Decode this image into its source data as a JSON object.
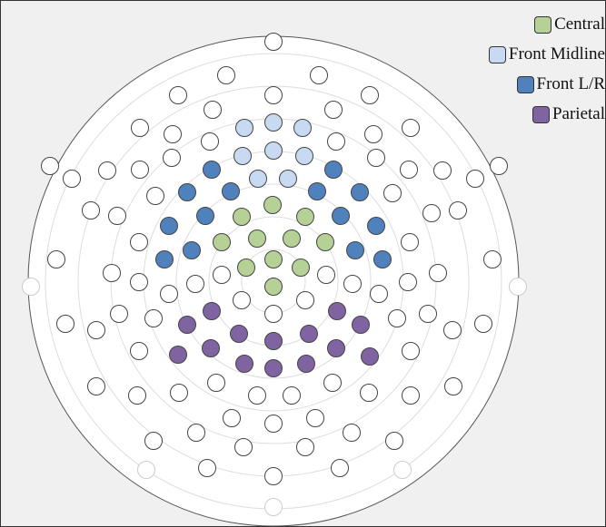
{
  "legend": [
    {
      "label": "Central",
      "color": "#b6d195"
    },
    {
      "label": "Front Midline",
      "color": "#c7daf2"
    },
    {
      "label": "Front L/R",
      "color": "#4f81bd"
    },
    {
      "label": "Parietal",
      "color": "#8064a2"
    }
  ]
}
